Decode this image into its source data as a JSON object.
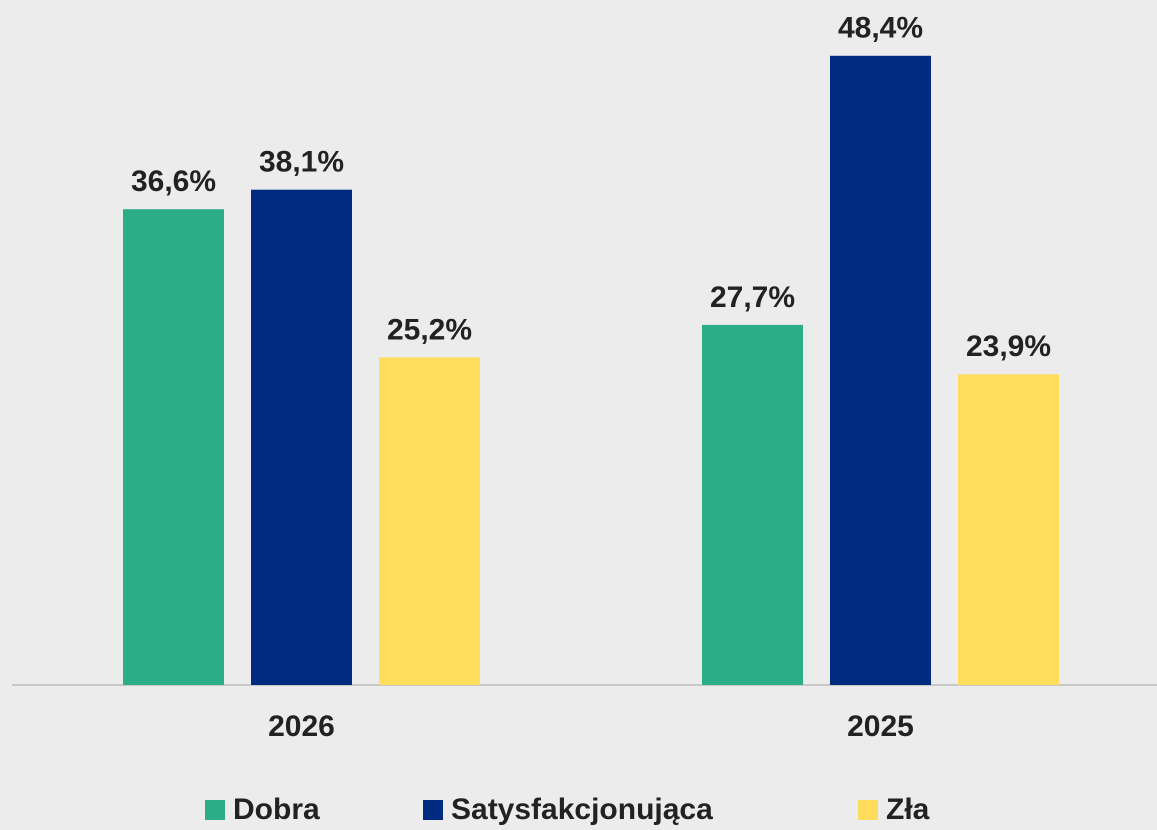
{
  "chart_data": {
    "type": "bar",
    "categories": [
      "2026",
      "2025"
    ],
    "series": [
      {
        "name": "Dobra",
        "color": "#2bae88",
        "values": [
          36.6,
          27.7
        ],
        "value_labels": [
          "36,6%",
          "27,7%"
        ]
      },
      {
        "name": "Satysfakcjonująca",
        "color": "#002b80",
        "values": [
          38.1,
          48.4
        ],
        "value_labels": [
          "38,1%",
          "48,4%"
        ]
      },
      {
        "name": "Zła",
        "color": "#ffdd5c",
        "values": [
          25.2,
          23.9
        ],
        "value_labels": [
          "25,2%",
          "23,9%"
        ]
      }
    ],
    "ylim": [
      0,
      50
    ],
    "legend": "bottom"
  }
}
